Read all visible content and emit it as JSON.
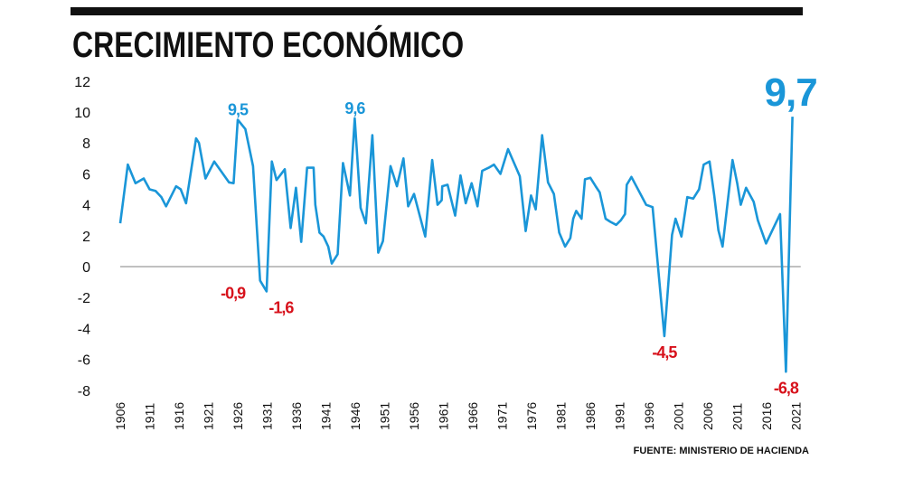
{
  "colors": {
    "line": "#1a96d8",
    "negative": "#d7111b",
    "text": "#111111",
    "zero_line": "#9a9a9a"
  },
  "chart_data": {
    "type": "line",
    "title": "CRECIMIENTO ECONÓMICO",
    "source": "FUENTE: MINISTERIO DE HACIENDA",
    "xlabel": "",
    "ylabel": "",
    "xlim": [
      1906,
      2021.5
    ],
    "ylim": [
      -8,
      12
    ],
    "yticks": [
      12,
      10,
      8,
      6,
      4,
      2,
      0,
      -2,
      -4,
      -6,
      -8
    ],
    "xticks": [
      1906,
      1911,
      1916,
      1921,
      1926,
      1931,
      1936,
      1941,
      1946,
      1951,
      1956,
      1961,
      1966,
      1971,
      1976,
      1981,
      1986,
      1991,
      1996,
      2001,
      2006,
      2011,
      2016,
      2021
    ],
    "grid": false,
    "series": [
      {
        "points": [
          [
            1906.0,
            2.8
          ],
          [
            1907.3,
            6.6
          ],
          [
            1908.6,
            5.4
          ],
          [
            1910.0,
            5.7
          ],
          [
            1911.0,
            5.0
          ],
          [
            1912.0,
            4.9
          ],
          [
            1913.0,
            4.5
          ],
          [
            1913.8,
            3.9
          ],
          [
            1915.5,
            5.2
          ],
          [
            1916.3,
            5.0
          ],
          [
            1917.2,
            4.1
          ],
          [
            1918.9,
            8.3
          ],
          [
            1919.4,
            8.0
          ],
          [
            1920.5,
            5.7
          ],
          [
            1922.0,
            6.8
          ],
          [
            1924.5,
            5.45
          ],
          [
            1925.3,
            5.4
          ],
          [
            1926.0,
            9.5
          ],
          [
            1927.3,
            8.9
          ],
          [
            1928.6,
            6.5
          ],
          [
            1929.8,
            -0.9
          ],
          [
            1930.9,
            -1.6
          ],
          [
            1931.8,
            6.8
          ],
          [
            1932.6,
            5.6
          ],
          [
            1934.0,
            6.3
          ],
          [
            1935.0,
            2.5
          ],
          [
            1935.9,
            5.1
          ],
          [
            1936.8,
            1.6
          ],
          [
            1937.8,
            6.4
          ],
          [
            1938.9,
            6.4
          ],
          [
            1939.2,
            4.0
          ],
          [
            1939.9,
            2.2
          ],
          [
            1940.6,
            1.95
          ],
          [
            1941.4,
            1.3
          ],
          [
            1942.0,
            0.2
          ],
          [
            1943.0,
            0.8
          ],
          [
            1943.9,
            6.7
          ],
          [
            1945.1,
            4.6
          ],
          [
            1945.9,
            9.6
          ],
          [
            1946.9,
            3.8
          ],
          [
            1947.8,
            2.8
          ],
          [
            1948.9,
            8.5
          ],
          [
            1949.9,
            0.9
          ],
          [
            1950.7,
            1.65
          ],
          [
            1952.0,
            6.5
          ],
          [
            1953.1,
            5.2
          ],
          [
            1954.2,
            7.0
          ],
          [
            1955.0,
            3.9
          ],
          [
            1956.0,
            4.7
          ],
          [
            1957.9,
            1.95
          ],
          [
            1959.1,
            6.9
          ],
          [
            1960.0,
            4.0
          ],
          [
            1960.7,
            4.3
          ],
          [
            1960.8,
            5.2
          ],
          [
            1961.7,
            5.3
          ],
          [
            1963.0,
            3.3
          ],
          [
            1963.9,
            5.9
          ],
          [
            1964.8,
            4.1
          ],
          [
            1965.8,
            5.4
          ],
          [
            1966.8,
            3.9
          ],
          [
            1967.6,
            6.2
          ],
          [
            1968.7,
            6.4
          ],
          [
            1969.6,
            6.6
          ],
          [
            1970.7,
            6.0
          ],
          [
            1972.0,
            7.6
          ],
          [
            1974.0,
            5.85
          ],
          [
            1975.0,
            2.3
          ],
          [
            1975.9,
            4.6
          ],
          [
            1976.7,
            3.7
          ],
          [
            1977.8,
            8.5
          ],
          [
            1978.8,
            5.45
          ],
          [
            1979.8,
            4.7
          ],
          [
            1980.7,
            2.2
          ],
          [
            1981.7,
            1.3
          ],
          [
            1982.6,
            1.85
          ],
          [
            1983.1,
            3.1
          ],
          [
            1983.6,
            3.6
          ],
          [
            1984.5,
            3.1
          ],
          [
            1985.1,
            5.65
          ],
          [
            1986.0,
            5.75
          ],
          [
            1986.9,
            5.2
          ],
          [
            1987.6,
            4.8
          ],
          [
            1988.6,
            3.1
          ],
          [
            1989.4,
            2.9
          ],
          [
            1990.4,
            2.7
          ],
          [
            1991.2,
            3.0
          ],
          [
            1991.9,
            3.4
          ],
          [
            1992.2,
            5.3
          ],
          [
            1993.0,
            5.8
          ],
          [
            1995.5,
            4.0
          ],
          [
            1996.6,
            3.85
          ],
          [
            1998.6,
            -4.5
          ],
          [
            1999.9,
            2.05
          ],
          [
            2000.5,
            3.1
          ],
          [
            2001.5,
            1.95
          ],
          [
            2002.5,
            4.5
          ],
          [
            2003.5,
            4.4
          ],
          [
            2004.5,
            5.0
          ],
          [
            2005.3,
            6.6
          ],
          [
            2006.3,
            6.8
          ],
          [
            2007.1,
            4.6
          ],
          [
            2007.8,
            2.35
          ],
          [
            2008.5,
            1.3
          ],
          [
            2010.2,
            6.9
          ],
          [
            2011.0,
            5.4
          ],
          [
            2011.6,
            4.0
          ],
          [
            2012.5,
            5.1
          ],
          [
            2013.8,
            4.2
          ],
          [
            2014.5,
            3.0
          ],
          [
            2015.9,
            1.5
          ],
          [
            2018.3,
            3.4
          ],
          [
            2019.3,
            -6.8
          ],
          [
            2020.4,
            9.7
          ]
        ]
      }
    ],
    "annotations": [
      {
        "text": "9,5",
        "x": 1926.0,
        "y": 9.5,
        "kind": "max"
      },
      {
        "text": "-0,9",
        "x": 1929.8,
        "y": -0.9,
        "kind": "min"
      },
      {
        "text": "-1,6",
        "x": 1930.9,
        "y": -1.6,
        "kind": "min"
      },
      {
        "text": "9,6",
        "x": 1945.9,
        "y": 9.6,
        "kind": "max"
      },
      {
        "text": "-4,5",
        "x": 1998.6,
        "y": -4.5,
        "kind": "min"
      },
      {
        "text": "-6,8",
        "x": 2019.3,
        "y": -6.8,
        "kind": "min"
      },
      {
        "text": "9,7",
        "x": 2020.4,
        "y": 9.7,
        "kind": "highlight"
      }
    ]
  }
}
